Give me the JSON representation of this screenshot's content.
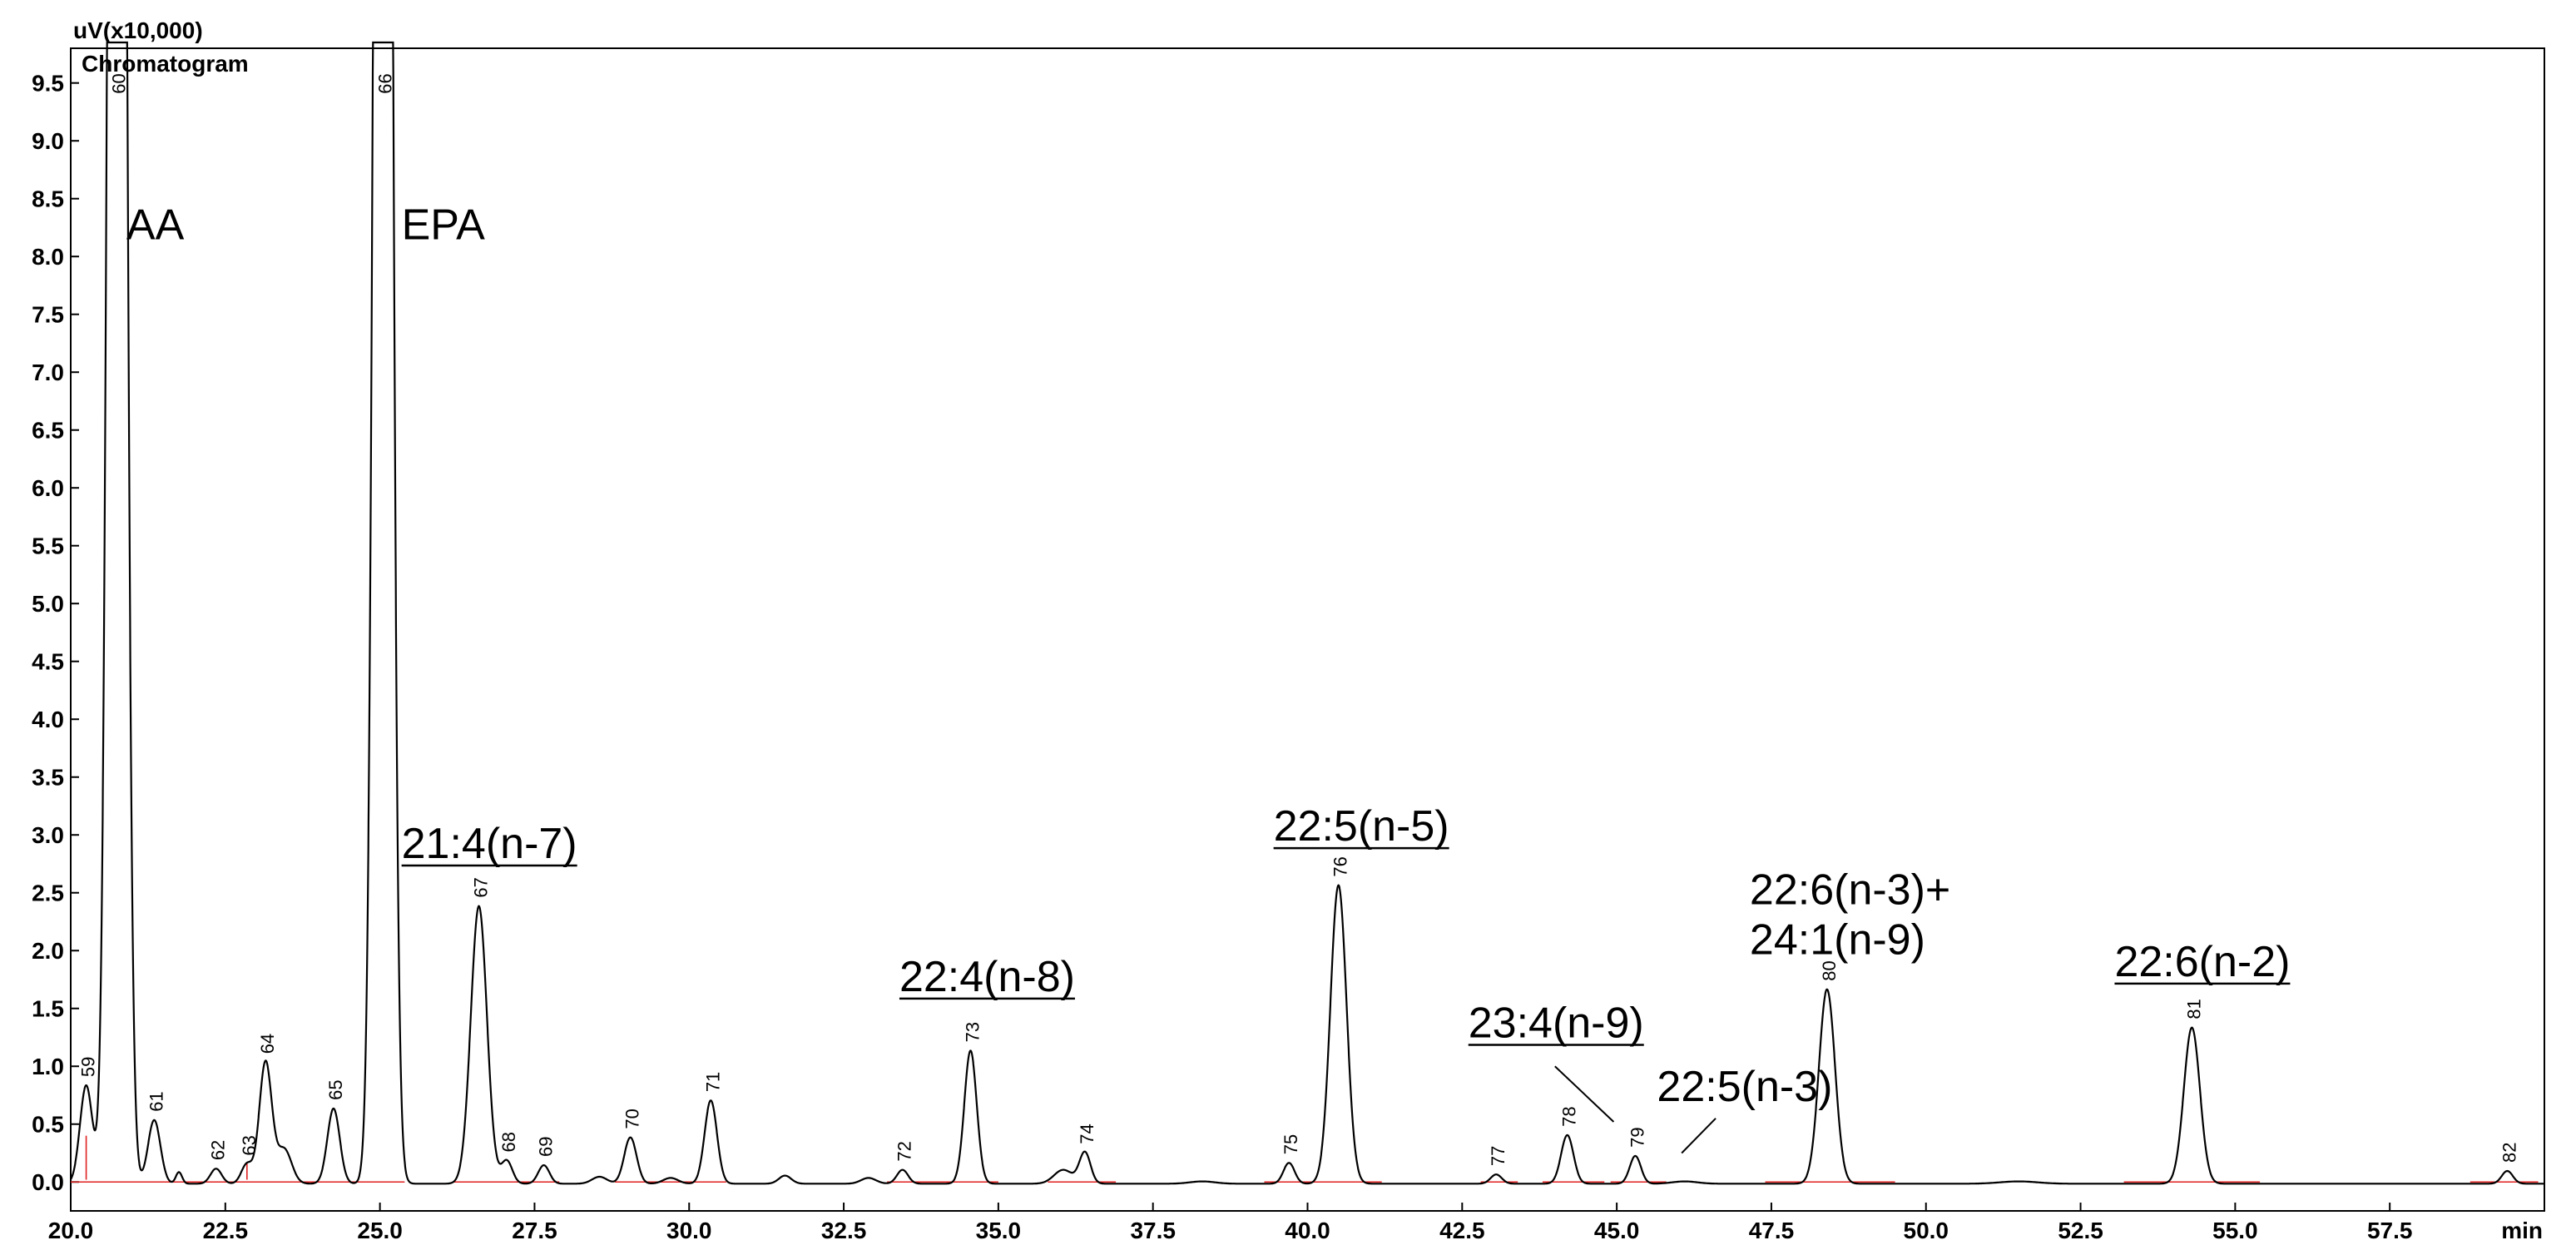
{
  "header": {
    "unit_label": "uV(x10,000)",
    "title": "Chromatogram"
  },
  "chart_data": {
    "type": "line",
    "title": "Chromatogram",
    "xlabel": "min",
    "ylabel": "uV(x10,000)",
    "xlim": [
      20.0,
      60.0
    ],
    "ylim": [
      -0.25,
      9.8
    ],
    "xticks": [
      "20.0",
      "22.5",
      "25.0",
      "27.5",
      "30.0",
      "32.5",
      "35.0",
      "37.5",
      "40.0",
      "42.5",
      "45.0",
      "47.5",
      "50.0",
      "52.5",
      "55.0",
      "57.5"
    ],
    "yticks": [
      "0.0",
      "0.5",
      "1.0",
      "1.5",
      "2.0",
      "2.5",
      "3.0",
      "3.5",
      "4.0",
      "4.5",
      "5.0",
      "5.5",
      "6.0",
      "6.5",
      "7.0",
      "7.5",
      "8.0",
      "8.5",
      "9.0",
      "9.5"
    ],
    "baseline_color": "#e02020",
    "trace_color": "#000000",
    "peaks": [
      {
        "label": "59",
        "rt": 20.25,
        "height": 0.85
      },
      {
        "label": "60",
        "rt": 20.75,
        "height": 30.0
      },
      {
        "label": "61",
        "rt": 21.35,
        "height": 0.55
      },
      {
        "label": "62",
        "rt": 22.35,
        "height": 0.13
      },
      {
        "label": "63",
        "rt": 22.85,
        "height": 0.17
      },
      {
        "label": "64",
        "rt": 23.15,
        "height": 1.05
      },
      {
        "label": "65",
        "rt": 24.25,
        "height": 0.65
      },
      {
        "label": "66",
        "rt": 25.05,
        "height": 30.0
      },
      {
        "label": "67",
        "rt": 26.6,
        "height": 2.4
      },
      {
        "label": "68",
        "rt": 27.05,
        "height": 0.2
      },
      {
        "label": "69",
        "rt": 27.65,
        "height": 0.16
      },
      {
        "label": "70",
        "rt": 29.05,
        "height": 0.4
      },
      {
        "label": "71",
        "rt": 30.35,
        "height": 0.72
      },
      {
        "label": "72",
        "rt": 33.45,
        "height": 0.12
      },
      {
        "label": "73",
        "rt": 34.55,
        "height": 1.15
      },
      {
        "label": "74",
        "rt": 36.4,
        "height": 0.27
      },
      {
        "label": "75",
        "rt": 39.7,
        "height": 0.18
      },
      {
        "label": "76",
        "rt": 40.5,
        "height": 2.58
      },
      {
        "label": "77",
        "rt": 43.05,
        "height": 0.08
      },
      {
        "label": "78",
        "rt": 44.2,
        "height": 0.42
      },
      {
        "label": "79",
        "rt": 45.3,
        "height": 0.24
      },
      {
        "label": "80",
        "rt": 48.4,
        "height": 1.68
      },
      {
        "label": "81",
        "rt": 54.3,
        "height": 1.35
      },
      {
        "label": "82",
        "rt": 59.4,
        "height": 0.11
      }
    ],
    "annotations": [
      {
        "lines": [
          "AA"
        ],
        "underline": false,
        "leader": false
      },
      {
        "lines": [
          "EPA"
        ],
        "underline": false,
        "leader": false
      },
      {
        "lines": [
          "21:4(n-7)"
        ],
        "underline": true,
        "leader": false
      },
      {
        "lines": [
          "22:4(n-8)"
        ],
        "underline": true,
        "leader": false
      },
      {
        "lines": [
          "22:5(n-5)"
        ],
        "underline": true,
        "leader": false
      },
      {
        "lines": [
          "23:4(n-9)"
        ],
        "underline": true,
        "leader": true
      },
      {
        "lines": [
          "22:5(n-3)"
        ],
        "underline": false,
        "leader": true
      },
      {
        "lines": [
          "22:6(n-3)+",
          "24:1(n-9)"
        ],
        "underline": false,
        "leader": false
      },
      {
        "lines": [
          "22:6(n-2)"
        ],
        "underline": true,
        "leader": false
      }
    ]
  }
}
